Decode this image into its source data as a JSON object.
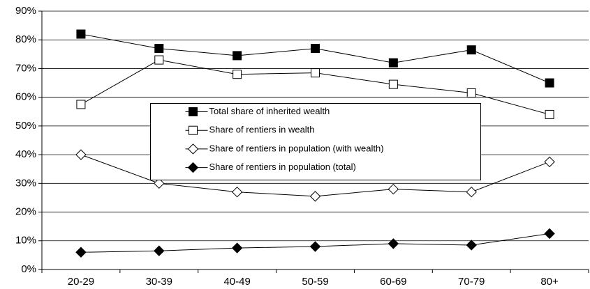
{
  "chart_data": {
    "type": "line",
    "categories": [
      "20-29",
      "30-39",
      "40-49",
      "50-59",
      "60-69",
      "70-79",
      "80+"
    ],
    "series": [
      {
        "name": "Total share of inherited wealth",
        "color": "#000000",
        "marker": "square",
        "filled": true,
        "values": [
          82,
          77,
          74.5,
          77,
          72,
          76.5,
          65
        ]
      },
      {
        "name": "Share of rentiers in wealth",
        "color": "#000000",
        "marker": "square",
        "filled": false,
        "values": [
          57.5,
          73,
          68,
          68.5,
          64.5,
          61.5,
          54
        ]
      },
      {
        "name": "Share of rentiers in population (with wealth)",
        "color": "#000000",
        "marker": "diamond",
        "filled": false,
        "values": [
          40,
          30,
          27,
          25.5,
          28,
          27,
          37.5
        ]
      },
      {
        "name": "Share of rentiers in population (total)",
        "color": "#000000",
        "marker": "diamond",
        "filled": true,
        "values": [
          6,
          6.5,
          7.5,
          8,
          9,
          8.5,
          12.5
        ]
      }
    ],
    "ylim": [
      0,
      90
    ],
    "yticks": [
      {
        "value": 0,
        "label": "0%"
      },
      {
        "value": 10,
        "label": "10%"
      },
      {
        "value": 20,
        "label": "20%"
      },
      {
        "value": 30,
        "label": "30%"
      },
      {
        "value": 40,
        "label": "40%"
      },
      {
        "value": 50,
        "label": "50%"
      },
      {
        "value": 60,
        "label": "60%"
      },
      {
        "value": 70,
        "label": "70%"
      },
      {
        "value": 80,
        "label": "80%"
      },
      {
        "value": 90,
        "label": "90%"
      }
    ],
    "grid": true,
    "legend": "center"
  }
}
